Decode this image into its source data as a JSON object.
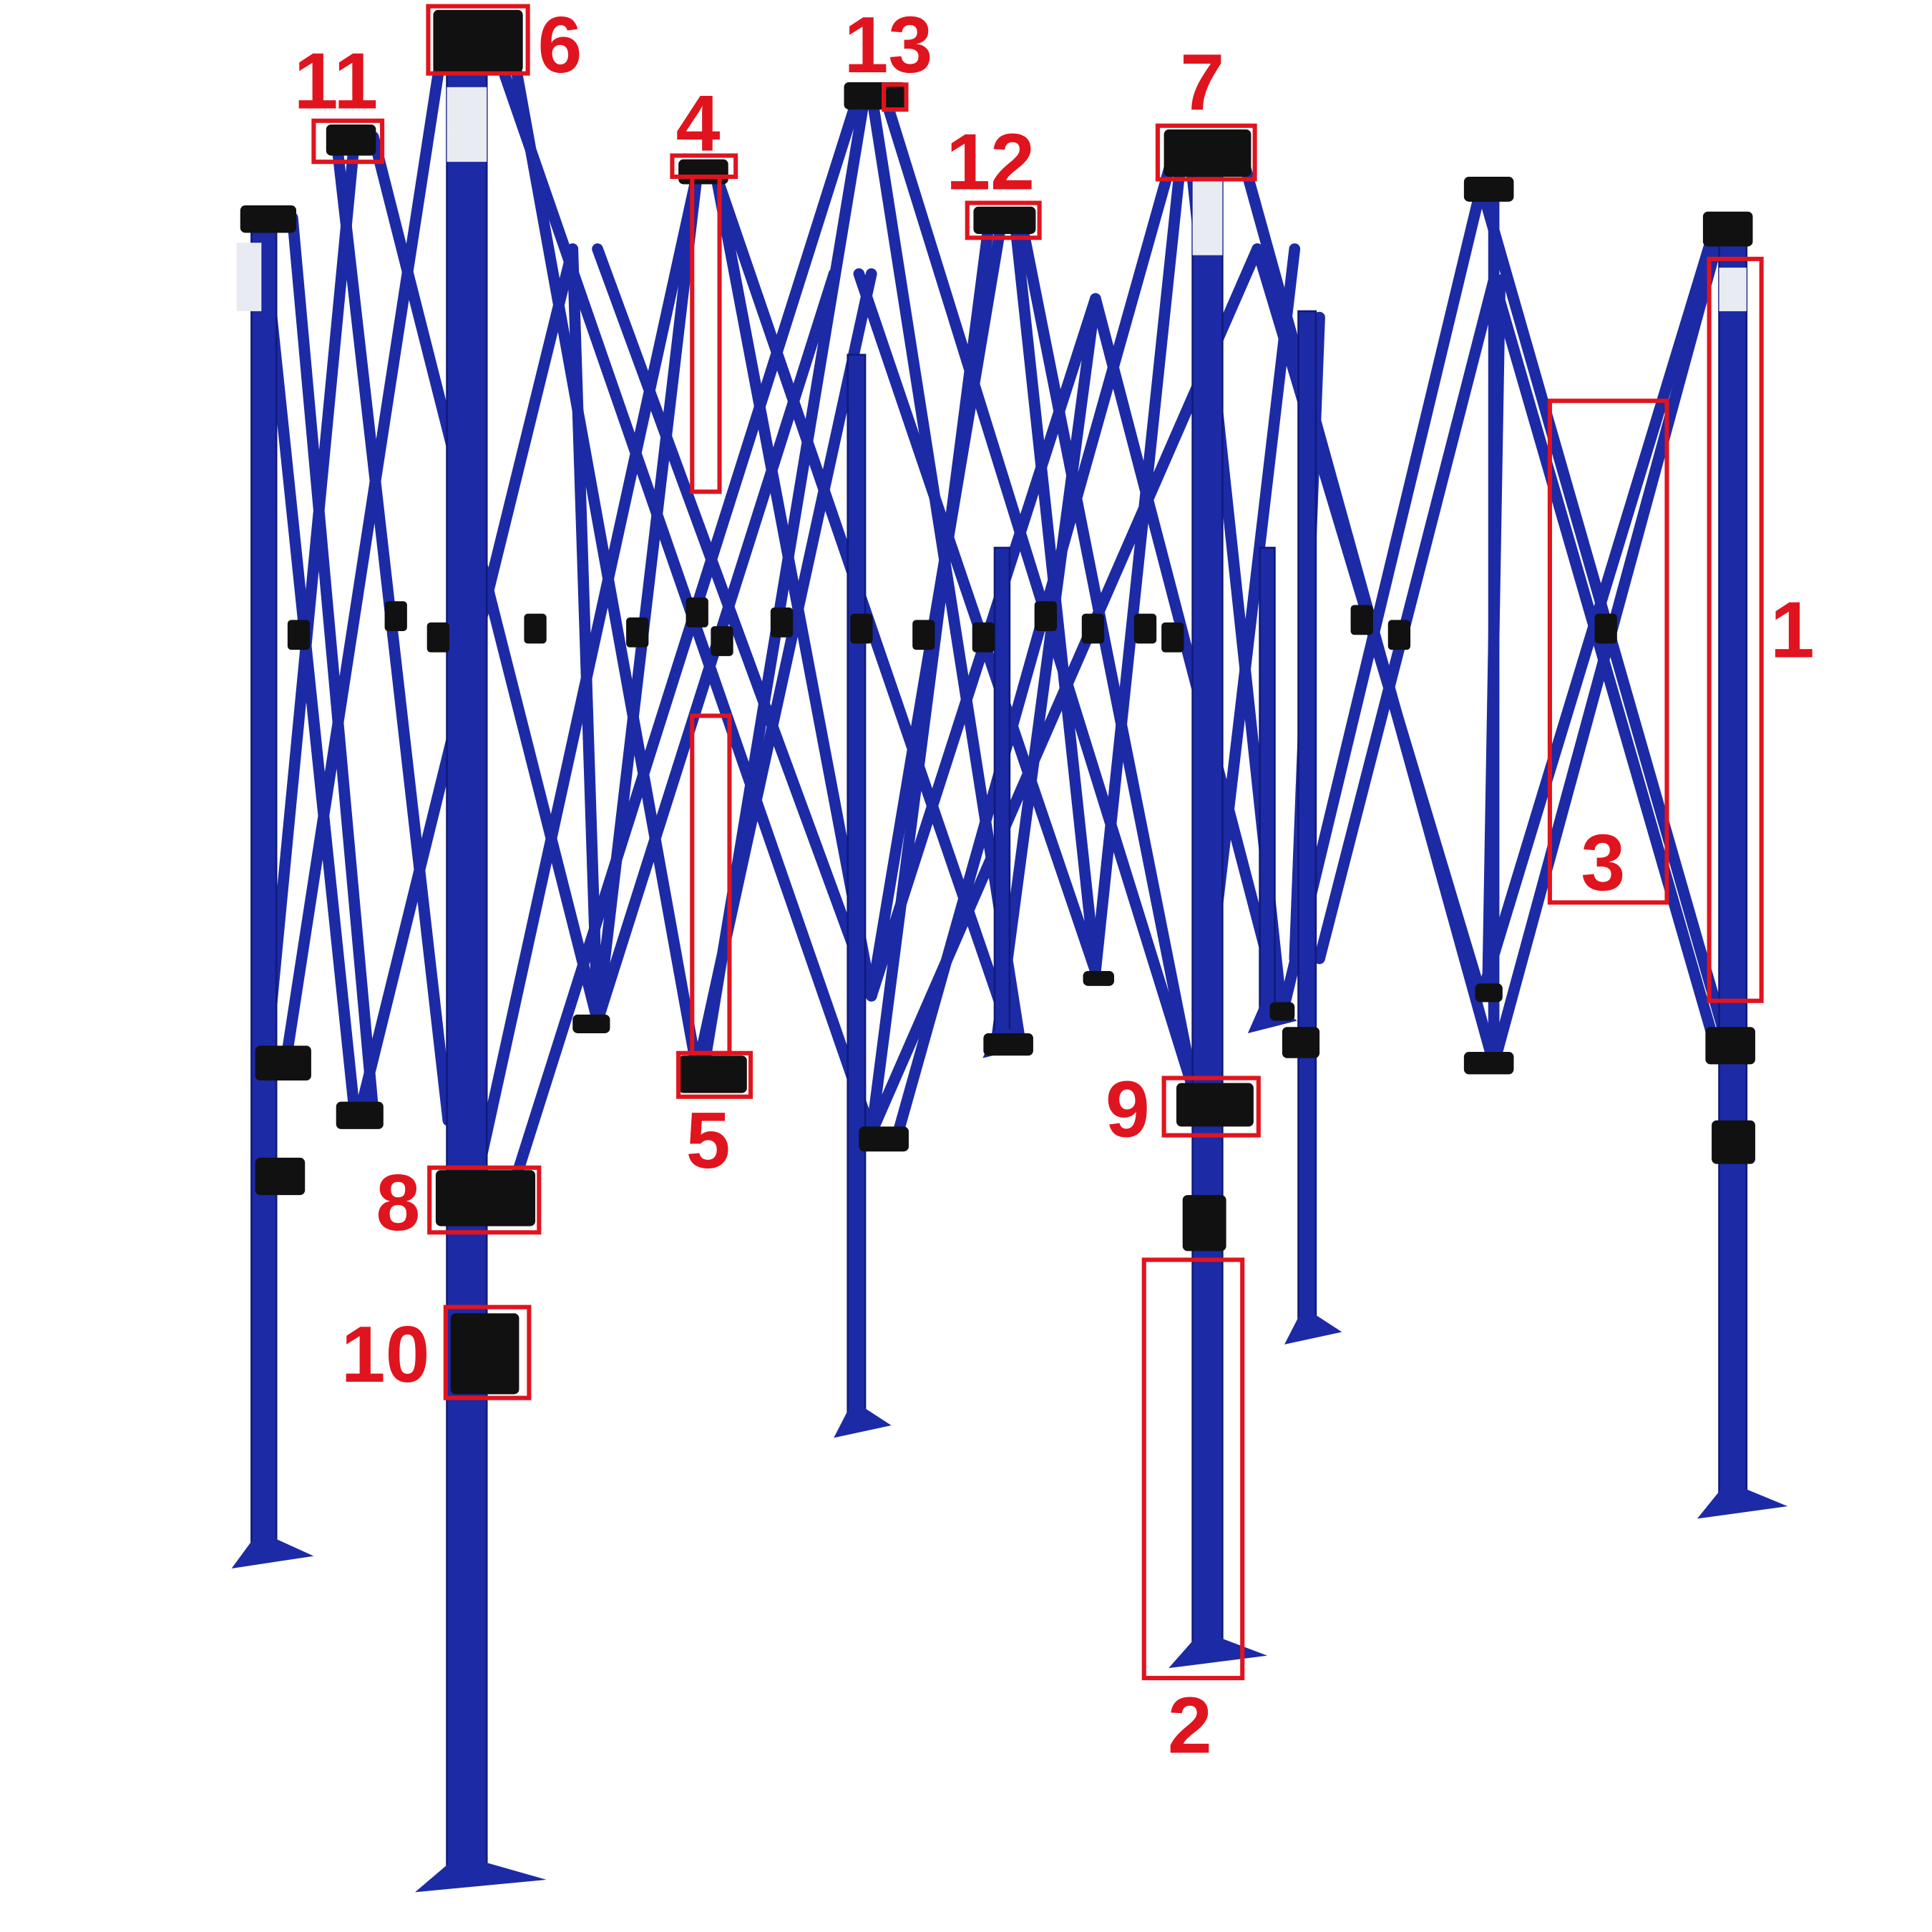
{
  "figure": {
    "subject": "pop-up canopy frame",
    "colors": {
      "frame": "#1c2aa6",
      "frame_dark": "#0f1a7a",
      "fittings": "#111111",
      "callout": "#e0141e"
    },
    "callouts": [
      {
        "label": "1"
      },
      {
        "label": "2"
      },
      {
        "label": "3"
      },
      {
        "label": "4"
      },
      {
        "label": "5"
      },
      {
        "label": "6"
      },
      {
        "label": "7"
      },
      {
        "label": "8"
      },
      {
        "label": "9"
      },
      {
        "label": "10"
      },
      {
        "label": "11"
      },
      {
        "label": "12"
      },
      {
        "label": "13"
      }
    ]
  }
}
